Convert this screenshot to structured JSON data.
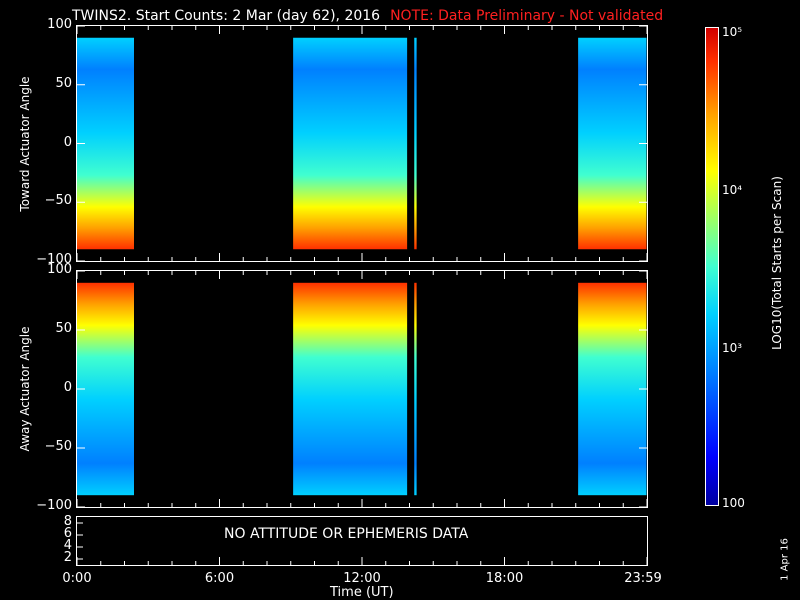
{
  "title": "TWINS2. Start Counts:  2 Mar (day  62), 2016",
  "note": "NOTE: Data Preliminary - Not validated",
  "status_text": "NO ATTITUDE OR EPHEMERIS DATA",
  "colorbar": {
    "label": "LOG10(Total Starts per Scan)",
    "ticks": [
      "10⁵",
      "10⁴",
      "10³",
      "100"
    ],
    "colors": [
      "#0000a0",
      "#0000ff",
      "#0080ff",
      "#00d0ff",
      "#40ffd0",
      "#b0ff50",
      "#ffff00",
      "#ffa000",
      "#ff3000",
      "#d00000"
    ]
  },
  "date_stamp": "1 Apr 16",
  "chart_data": [
    {
      "type": "heatmap",
      "panel": "top",
      "ylabel": "Toward Actuator Angle",
      "ylim": [
        -100,
        100
      ],
      "yticks": [
        "100",
        "50",
        "0",
        "−50",
        "−100"
      ],
      "xlim_hours": [
        0,
        24
      ],
      "data_intervals_hours": [
        [
          0.0,
          2.4
        ],
        [
          9.1,
          13.9
        ],
        [
          14.2,
          14.3
        ],
        [
          21.1,
          23.98
        ]
      ]
    },
    {
      "type": "heatmap",
      "panel": "bottom",
      "ylabel": "Away Actuator Angle",
      "ylim": [
        -100,
        100
      ],
      "yticks": [
        "100",
        "50",
        "0",
        "−50",
        "−100"
      ],
      "xlim_hours": [
        0,
        24
      ],
      "data_intervals_hours": [
        [
          0.0,
          2.4
        ],
        [
          9.1,
          13.9
        ],
        [
          14.2,
          14.3
        ],
        [
          21.1,
          23.98
        ]
      ]
    },
    {
      "type": "table",
      "panel": "status",
      "yticks": [
        "8",
        "6",
        "4",
        "2"
      ]
    }
  ],
  "xaxis": {
    "label": "Time (UT)",
    "ticks": [
      "0:00",
      "6:00",
      "12:00",
      "18:00",
      "23:59"
    ]
  }
}
